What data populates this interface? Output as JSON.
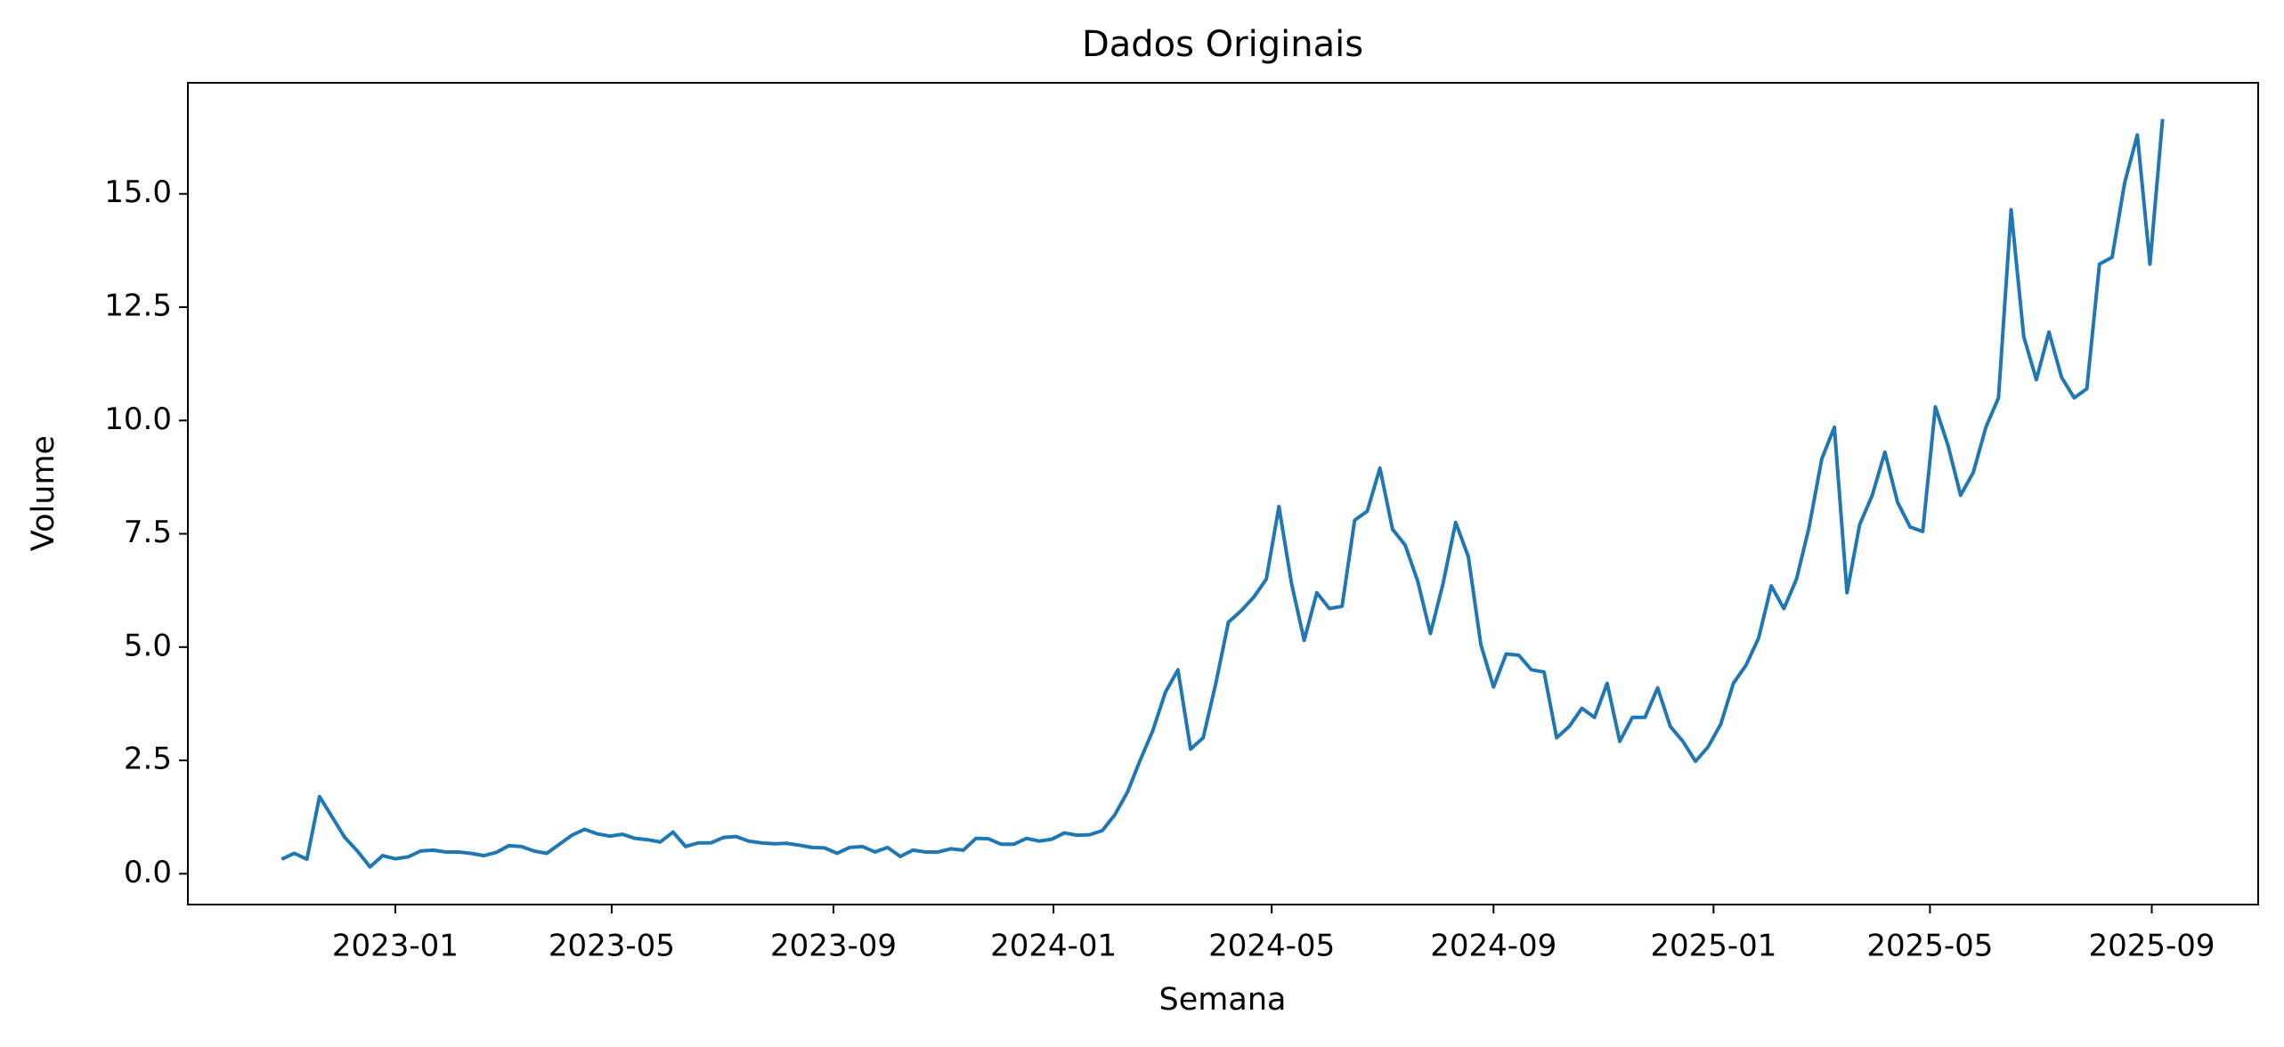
{
  "chart_data": {
    "type": "line",
    "title": "Dados Originais",
    "x_label": "Semana",
    "y_label": "Volume",
    "color": "#1f77b4",
    "x": [
      "2022-10-30",
      "2022-11-06",
      "2022-11-13",
      "2022-11-20",
      "2022-11-27",
      "2022-12-04",
      "2022-12-11",
      "2022-12-18",
      "2022-12-25",
      "2023-01-01",
      "2023-01-08",
      "2023-01-15",
      "2023-01-22",
      "2023-01-29",
      "2023-02-05",
      "2023-02-12",
      "2023-02-19",
      "2023-02-26",
      "2023-03-05",
      "2023-03-12",
      "2023-03-19",
      "2023-03-26",
      "2023-04-02",
      "2023-04-09",
      "2023-04-16",
      "2023-04-23",
      "2023-04-30",
      "2023-05-07",
      "2023-05-14",
      "2023-05-21",
      "2023-05-28",
      "2023-06-04",
      "2023-06-11",
      "2023-06-18",
      "2023-06-25",
      "2023-07-02",
      "2023-07-09",
      "2023-07-16",
      "2023-07-23",
      "2023-07-30",
      "2023-08-06",
      "2023-08-13",
      "2023-08-20",
      "2023-08-27",
      "2023-09-03",
      "2023-09-10",
      "2023-09-17",
      "2023-09-24",
      "2023-10-01",
      "2023-10-08",
      "2023-10-15",
      "2023-10-22",
      "2023-10-29",
      "2023-11-05",
      "2023-11-12",
      "2023-11-19",
      "2023-11-26",
      "2023-12-03",
      "2023-12-10",
      "2023-12-17",
      "2023-12-24",
      "2023-12-31",
      "2024-01-07",
      "2024-01-14",
      "2024-01-21",
      "2024-01-28",
      "2024-02-04",
      "2024-02-11",
      "2024-02-18",
      "2024-02-25",
      "2024-03-03",
      "2024-03-10",
      "2024-03-17",
      "2024-03-24",
      "2024-03-31",
      "2024-04-07",
      "2024-04-14",
      "2024-04-21",
      "2024-04-28",
      "2024-05-05",
      "2024-05-12",
      "2024-05-19",
      "2024-05-26",
      "2024-06-02",
      "2024-06-09",
      "2024-06-16",
      "2024-06-23",
      "2024-06-30",
      "2024-07-07",
      "2024-07-14",
      "2024-07-21",
      "2024-07-28",
      "2024-08-04",
      "2024-08-11",
      "2024-08-18",
      "2024-08-25",
      "2024-09-01",
      "2024-09-08",
      "2024-09-15",
      "2024-09-22",
      "2024-09-29",
      "2024-10-06",
      "2024-10-13",
      "2024-10-20",
      "2024-10-27",
      "2024-11-03",
      "2024-11-10",
      "2024-11-17",
      "2024-11-24",
      "2024-12-01",
      "2024-12-08",
      "2024-12-15",
      "2024-12-22",
      "2024-12-29",
      "2025-01-05",
      "2025-01-12",
      "2025-01-19",
      "2025-01-26",
      "2025-02-02",
      "2025-02-09",
      "2025-02-16",
      "2025-02-23",
      "2025-03-02",
      "2025-03-09",
      "2025-03-16",
      "2025-03-23",
      "2025-03-30",
      "2025-04-06",
      "2025-04-13",
      "2025-04-20",
      "2025-04-27",
      "2025-05-04",
      "2025-05-11",
      "2025-05-18",
      "2025-05-25",
      "2025-06-01",
      "2025-06-08",
      "2025-06-15",
      "2025-06-22",
      "2025-06-29",
      "2025-07-06",
      "2025-07-13",
      "2025-07-20",
      "2025-07-27",
      "2025-08-03",
      "2025-08-10",
      "2025-08-17",
      "2025-08-24",
      "2025-08-31",
      "2025-09-07"
    ],
    "values": [
      0.32,
      0.45,
      0.32,
      1.7,
      1.25,
      0.8,
      0.5,
      0.15,
      0.4,
      0.33,
      0.37,
      0.5,
      0.52,
      0.48,
      0.48,
      0.45,
      0.4,
      0.47,
      0.62,
      0.6,
      0.5,
      0.45,
      0.65,
      0.85,
      0.98,
      0.88,
      0.83,
      0.87,
      0.78,
      0.75,
      0.7,
      0.92,
      0.6,
      0.68,
      0.68,
      0.8,
      0.82,
      0.72,
      0.68,
      0.66,
      0.67,
      0.63,
      0.58,
      0.57,
      0.45,
      0.58,
      0.6,
      0.48,
      0.58,
      0.38,
      0.52,
      0.48,
      0.48,
      0.55,
      0.52,
      0.78,
      0.77,
      0.65,
      0.65,
      0.78,
      0.72,
      0.76,
      0.9,
      0.85,
      0.86,
      0.95,
      1.3,
      1.8,
      2.5,
      3.15,
      4.0,
      4.5,
      2.75,
      3.0,
      4.2,
      5.55,
      5.8,
      6.1,
      6.5,
      8.1,
      6.4,
      5.15,
      6.2,
      5.85,
      5.9,
      7.8,
      8.0,
      8.95,
      7.6,
      7.25,
      6.45,
      5.3,
      6.4,
      7.75,
      7.0,
      5.05,
      4.12,
      4.85,
      4.82,
      4.5,
      4.45,
      3.0,
      3.25,
      3.65,
      3.45,
      4.2,
      2.92,
      3.45,
      3.45,
      4.1,
      3.25,
      2.92,
      2.48,
      2.8,
      3.3,
      4.2,
      4.6,
      5.2,
      6.35,
      5.85,
      6.5,
      7.65,
      9.15,
      9.85,
      6.2,
      7.7,
      8.35,
      9.3,
      8.2,
      7.65,
      7.55,
      10.3,
      9.45,
      8.35,
      8.85,
      9.85,
      10.5,
      14.65,
      11.85,
      10.9,
      11.95,
      10.95,
      10.5,
      10.7,
      13.45,
      13.6,
      15.25,
      16.3,
      13.45,
      16.65
    ],
    "xlim": [
      "2022-09-08",
      "2025-10-30"
    ],
    "xticks": [
      "2023-01",
      "2023-05",
      "2023-09",
      "2024-01",
      "2024-05",
      "2024-09",
      "2025-01",
      "2025-05",
      "2025-09"
    ],
    "ylim": [
      -0.68,
      17.45
    ],
    "yticks": [
      {
        "value": 0,
        "label": "0.0"
      },
      2.5,
      {
        "value": 5,
        "label": "5.0"
      },
      7.5,
      {
        "value": 10,
        "label": "10.0"
      },
      12.5,
      {
        "value": 15,
        "label": "15.0"
      }
    ],
    "grid": false
  }
}
